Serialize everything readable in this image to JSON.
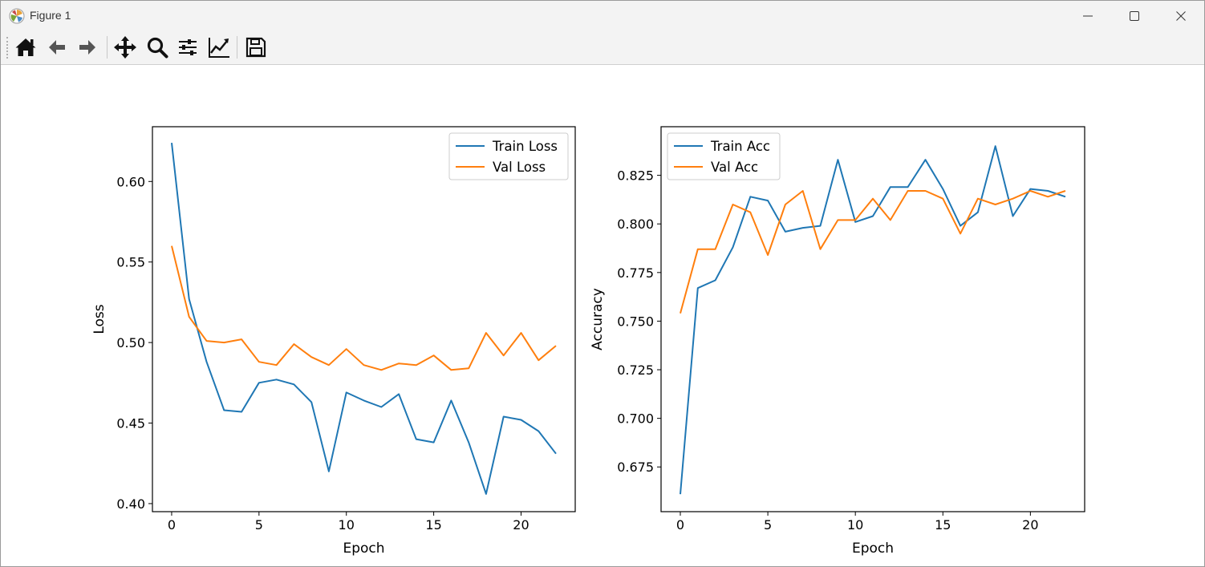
{
  "window": {
    "title": "Figure 1"
  },
  "toolbar": {
    "buttons": [
      {
        "name": "home-button",
        "icon": "home-icon"
      },
      {
        "name": "back-button",
        "icon": "arrow-left-icon"
      },
      {
        "name": "forward-button",
        "icon": "arrow-right-icon"
      },
      {
        "name": "pan-button",
        "icon": "move-arrows-icon"
      },
      {
        "name": "zoom-button",
        "icon": "magnifier-icon"
      },
      {
        "name": "subplots-button",
        "icon": "sliders-icon"
      },
      {
        "name": "edit-axes-button",
        "icon": "line-chart-icon"
      },
      {
        "name": "save-button",
        "icon": "floppy-disk-icon"
      }
    ]
  },
  "colors": {
    "series1": "#1f77b4",
    "series2": "#ff7f0e"
  },
  "chart_data": [
    {
      "type": "line",
      "xlabel": "Epoch",
      "ylabel": "Loss",
      "xlim": [
        -1.1,
        23.1
      ],
      "ylim": [
        0.395,
        0.634
      ],
      "xticks": [
        0,
        5,
        10,
        15,
        20
      ],
      "xtick_labels": [
        "0",
        "5",
        "10",
        "15",
        "20"
      ],
      "yticks": [
        0.4,
        0.45,
        0.5,
        0.55,
        0.6
      ],
      "ytick_labels": [
        "0.40",
        "0.45",
        "0.50",
        "0.55",
        "0.60"
      ],
      "legend_position": "upper right",
      "x": [
        0,
        1,
        2,
        3,
        4,
        5,
        6,
        7,
        8,
        9,
        10,
        11,
        12,
        13,
        14,
        15,
        16,
        17,
        18,
        19,
        20,
        21,
        22
      ],
      "series": [
        {
          "name": "Train Loss",
          "color": "#1f77b4",
          "values": [
            0.624,
            0.527,
            0.488,
            0.458,
            0.457,
            0.475,
            0.477,
            0.474,
            0.463,
            0.42,
            0.469,
            0.464,
            0.46,
            0.468,
            0.44,
            0.438,
            0.464,
            0.438,
            0.406,
            0.454,
            0.452,
            0.445,
            0.431
          ]
        },
        {
          "name": "Val Loss",
          "color": "#ff7f0e",
          "values": [
            0.56,
            0.516,
            0.501,
            0.5,
            0.502,
            0.488,
            0.486,
            0.499,
            0.491,
            0.486,
            0.496,
            0.486,
            0.483,
            0.487,
            0.486,
            0.492,
            0.483,
            0.484,
            0.506,
            0.492,
            0.506,
            0.489,
            0.498
          ]
        }
      ]
    },
    {
      "type": "line",
      "xlabel": "Epoch",
      "ylabel": "Accuracy",
      "xlim": [
        -1.1,
        23.1
      ],
      "ylim": [
        0.652,
        0.85
      ],
      "xticks": [
        0,
        5,
        10,
        15,
        20
      ],
      "xtick_labels": [
        "0",
        "5",
        "10",
        "15",
        "20"
      ],
      "yticks": [
        0.675,
        0.7,
        0.725,
        0.75,
        0.775,
        0.8,
        0.825
      ],
      "ytick_labels": [
        "0.675",
        "0.700",
        "0.725",
        "0.750",
        "0.775",
        "0.800",
        "0.825"
      ],
      "legend_position": "upper left",
      "x": [
        0,
        1,
        2,
        3,
        4,
        5,
        6,
        7,
        8,
        9,
        10,
        11,
        12,
        13,
        14,
        15,
        16,
        17,
        18,
        19,
        20,
        21,
        22
      ],
      "series": [
        {
          "name": "Train Acc",
          "color": "#1f77b4",
          "values": [
            0.661,
            0.767,
            0.771,
            0.788,
            0.814,
            0.812,
            0.796,
            0.798,
            0.799,
            0.833,
            0.801,
            0.804,
            0.819,
            0.819,
            0.833,
            0.818,
            0.799,
            0.806,
            0.84,
            0.804,
            0.818,
            0.817,
            0.814
          ]
        },
        {
          "name": "Val Acc",
          "color": "#ff7f0e",
          "values": [
            0.754,
            0.787,
            0.787,
            0.81,
            0.806,
            0.784,
            0.81,
            0.817,
            0.787,
            0.802,
            0.802,
            0.813,
            0.802,
            0.817,
            0.817,
            0.813,
            0.795,
            0.813,
            0.81,
            0.813,
            0.817,
            0.814,
            0.817
          ]
        }
      ]
    }
  ]
}
